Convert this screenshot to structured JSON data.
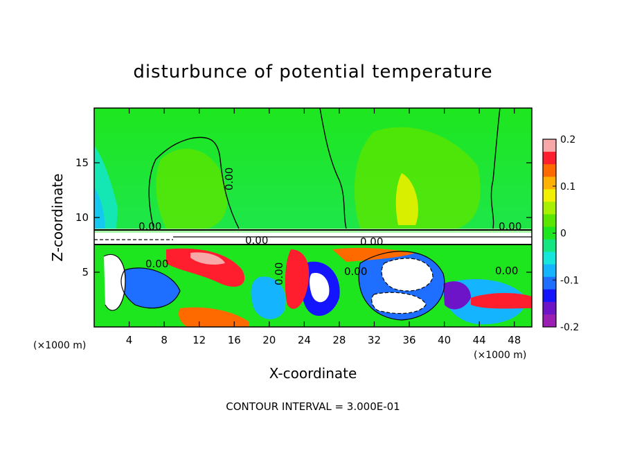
{
  "chart_data": {
    "type": "heatmap",
    "title": "disturbunce of potential temperature",
    "xlabel": "X-coordinate",
    "ylabel": "Z-coordinate",
    "x_unit": "(×1000 m)",
    "z_unit": "(×1000 m)",
    "x_ticks": [
      4,
      8,
      12,
      16,
      20,
      24,
      28,
      32,
      36,
      40,
      44,
      48
    ],
    "z_ticks": [
      5,
      10,
      15
    ],
    "xlim": [
      0,
      50
    ],
    "zlim": [
      0,
      20
    ],
    "colorbar": {
      "ticks": [
        "0.2",
        "0.1",
        "0",
        "-0.1",
        "-0.2"
      ],
      "tick_values": [
        0.2,
        0.1,
        0,
        -0.1,
        -0.2
      ],
      "range": [
        -0.2,
        0.2
      ],
      "colors": [
        "#f8a8a8",
        "#ff1e2d",
        "#ff6a00",
        "#ffb000",
        "#f0f000",
        "#a6f000",
        "#5ae600",
        "#1ee61e",
        "#14e682",
        "#14e6dc",
        "#14b4ff",
        "#1e6eff",
        "#1414ff",
        "#6e14c8",
        "#9b1eb4"
      ]
    },
    "contour_labels": [
      "0.00",
      "0.00",
      "0.00",
      "0.00",
      "0.00",
      "0.00",
      "0.00",
      "0.00",
      "0.00"
    ],
    "contour_interval": "CONTOUR INTERVAL = 3.000E-01"
  }
}
